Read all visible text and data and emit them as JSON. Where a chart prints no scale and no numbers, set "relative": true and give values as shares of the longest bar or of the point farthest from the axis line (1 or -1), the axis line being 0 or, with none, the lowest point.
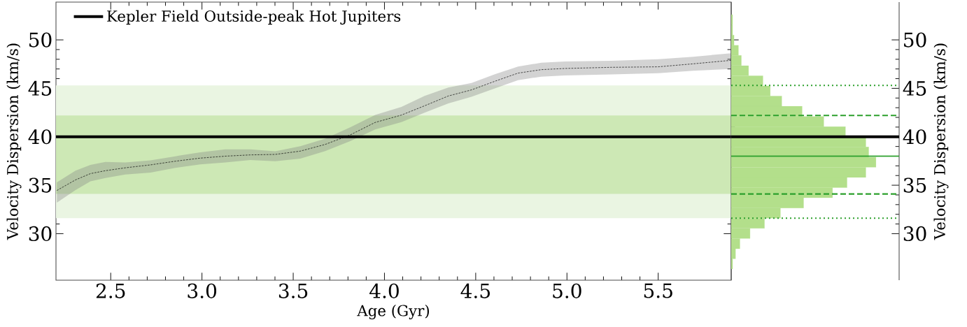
{
  "chart_data": [
    {
      "type": "line",
      "xlabel": "Age (Gyr)",
      "ylabel": "Velocity Dispersion (km/s)",
      "xlim": [
        2.2,
        5.9
      ],
      "ylim": [
        25.2,
        53.9
      ],
      "xticks": [
        2.5,
        {
          "value": 3,
          "label": "3.0"
        },
        3.5,
        {
          "value": 4,
          "label": "4.0"
        },
        4.5,
        {
          "value": 5,
          "label": "5.0"
        },
        5.5
      ],
      "yticks": [
        30,
        35,
        40,
        45,
        50
      ],
      "legend": "top left",
      "series": [
        {
          "color": "#000000",
          "line_style": "dashed",
          "x": [
            2.205,
            2.307,
            2.389,
            2.471,
            2.58,
            2.718,
            2.854,
            2.991,
            3.128,
            3.264,
            3.402,
            3.539,
            3.675,
            3.812,
            3.949,
            4.093,
            4.22,
            4.35,
            4.477,
            4.605,
            4.732,
            4.86,
            4.988,
            5.243,
            5.5,
            5.692,
            5.899
          ],
          "values": [
            34.46,
            35.55,
            36.2,
            36.5,
            36.8,
            37.1,
            37.48,
            37.8,
            38.0,
            38.13,
            38.18,
            38.52,
            39.21,
            40.19,
            41.48,
            42.24,
            43.2,
            44.21,
            44.84,
            45.73,
            46.57,
            46.93,
            47.05,
            47.17,
            47.22,
            47.53,
            47.89
          ],
          "upper": [
            35.3,
            36.5,
            37.1,
            37.4,
            37.35,
            37.56,
            37.99,
            38.39,
            38.7,
            38.7,
            38.5,
            39.03,
            39.8,
            40.97,
            42.26,
            43.08,
            44.21,
            45.08,
            45.56,
            46.45,
            47.24,
            47.65,
            47.77,
            47.85,
            48.0,
            48.26,
            48.62
          ],
          "lower": [
            33.2,
            34.5,
            35.4,
            35.75,
            36.1,
            36.3,
            36.8,
            37.15,
            37.35,
            37.6,
            37.48,
            37.74,
            38.52,
            39.55,
            40.76,
            41.52,
            42.48,
            43.44,
            44.12,
            45.0,
            45.85,
            46.21,
            46.33,
            46.43,
            46.57,
            46.81,
            47.0
          ]
        }
      ],
      "bands": [
        {
          "axis": "y",
          "from": 31.6,
          "to": 45.3,
          "color": "#eaf5e2"
        },
        {
          "axis": "y",
          "from": 34.1,
          "to": 42.2,
          "color": "#cde8b5"
        }
      ],
      "ref_lines": [
        {
          "axis": "y",
          "value": 40,
          "label": "Kepler Field Outside-peak Hot Jupiters",
          "color": "#000000",
          "line_style": "solid"
        }
      ]
    },
    {
      "type": "bar",
      "orientation": "horizontal",
      "relative": true,
      "color": "#b3df8b",
      "ylabel": "Velocity Dispersion (km/s)",
      "ylim": [
        25.2,
        53.9
      ],
      "yticks": [
        30,
        35,
        40,
        45,
        50
      ],
      "tick_labels": "y",
      "x": [
        26.875,
        27.925,
        28.975,
        30.025,
        31.075,
        32.125,
        33.175,
        34.225,
        35.275,
        36.325,
        37.375,
        38.425,
        39.475,
        40.525,
        41.575,
        42.625,
        43.675,
        44.725,
        45.775,
        46.825,
        47.875,
        48.925,
        49.975,
        51.025,
        52.075
      ],
      "values": [
        0.01,
        0.03,
        0.06,
        0.13,
        0.23,
        0.34,
        0.5,
        0.7,
        0.8,
        0.93,
        1.0,
        0.95,
        0.93,
        0.79,
        0.64,
        0.49,
        0.35,
        0.27,
        0.22,
        0.12,
        0.07,
        0.05,
        0.02,
        0.01,
        0.01
      ],
      "ref_lines": [
        {
          "axis": "y",
          "value": 45.3,
          "color": "#2ca02c",
          "line_style": "dotted"
        },
        {
          "axis": "y",
          "value": 42.2,
          "color": "#2ca02c",
          "line_style": "dashed"
        },
        {
          "axis": "y",
          "value": 40,
          "color": "#000000",
          "line_style": "solid"
        },
        {
          "axis": "y",
          "value": 38.0,
          "color": "#2ca02c",
          "line_style": "solid"
        },
        {
          "axis": "y",
          "value": 34.1,
          "color": "#2ca02c",
          "line_style": "dashed"
        },
        {
          "axis": "y",
          "value": 31.6,
          "color": "#2ca02c",
          "line_style": "dotted"
        }
      ]
    }
  ]
}
